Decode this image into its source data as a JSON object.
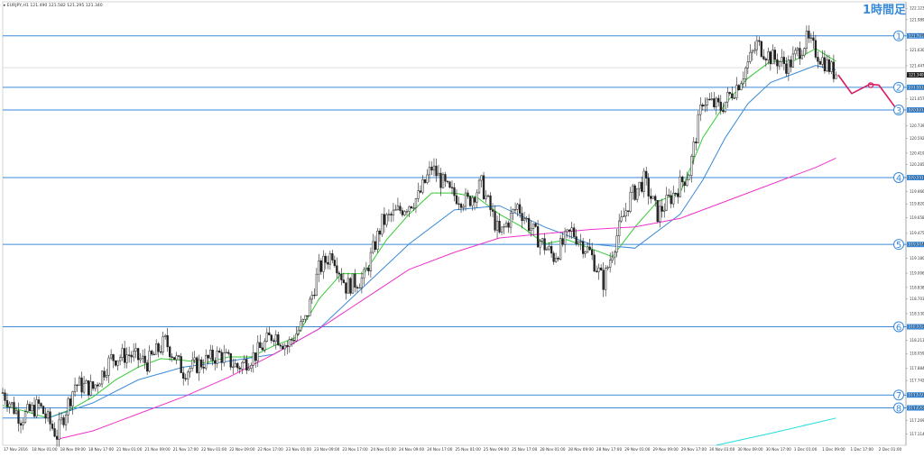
{
  "header": {
    "symbol_info": "▸ EURJPY,H1  121.490 121.582 121.295 121.340",
    "timeframe_label": "1時間足"
  },
  "colors": {
    "background": "#ffffff",
    "candle": "#222222",
    "ma_short": "#33cc33",
    "ma_mid": "#3a8ad8",
    "ma_long": "#ee33cc",
    "ma_extra": "#22dddd",
    "hline": "#3a8ad8",
    "forecast": "#d81b60",
    "marker": "#3a8ad8"
  },
  "chart_data": {
    "type": "candlestick",
    "symbol": "EURJPY",
    "timeframe": "H1",
    "ohlc_header": {
      "open": 121.49,
      "high": 121.582,
      "low": 121.295,
      "close": 121.34
    },
    "current_price": 121.34,
    "ylim": [
      116.98,
      122.2
    ],
    "y_ticks": [
      122.123,
      121.989,
      121.799,
      121.63,
      121.447,
      121.324,
      121.193,
      121.057,
      120.927,
      120.739,
      120.592,
      120.419,
      120.285,
      120.131,
      119.966,
      119.82,
      119.658,
      119.475,
      119.344,
      119.18,
      119.006,
      118.838,
      118.703,
      118.53,
      118.375,
      118.213,
      118.059,
      117.884,
      117.742,
      117.572,
      117.42,
      117.269,
      117.114
    ],
    "x_ticks": [
      "17 Nov 2016",
      "18 Nov 01:00",
      "18 Nov 09:00",
      "18 Nov 17:00",
      "21 Nov 01:00",
      "21 Nov 09:00",
      "21 Nov 17:00",
      "22 Nov 01:00",
      "22 Nov 09:00",
      "22 Nov 17:00",
      "23 Nov 01:00",
      "23 Nov 09:00",
      "23 Nov 17:00",
      "24 Nov 01:00",
      "24 Nov 09:00",
      "24 Nov 17:00",
      "25 Nov 01:00",
      "25 Nov 09:00",
      "25 Nov 17:00",
      "28 Nov 01:00",
      "28 Nov 09:00",
      "28 Nov 17:00",
      "29 Nov 01:00",
      "29 Nov 09:00",
      "29 Nov 17:00",
      "30 Nov 01:00",
      "30 Nov 09:00",
      "30 Nov 17:00",
      "1 Dec 01:00",
      "1 Dec 09:00",
      "1 Dec 17:00",
      "2 Dec 01:00"
    ],
    "candle_path": [
      [
        0,
        117.6
      ],
      [
        8,
        117.3
      ],
      [
        16,
        117.45
      ],
      [
        24,
        117.1
      ],
      [
        32,
        117.7
      ],
      [
        40,
        117.65
      ],
      [
        48,
        118.0
      ],
      [
        56,
        118.05
      ],
      [
        64,
        117.95
      ],
      [
        72,
        118.2
      ],
      [
        80,
        117.85
      ],
      [
        88,
        117.95
      ],
      [
        96,
        118.05
      ],
      [
        104,
        117.9
      ],
      [
        112,
        118.05
      ],
      [
        120,
        118.3
      ],
      [
        126,
        118.15
      ],
      [
        134,
        118.45
      ],
      [
        140,
        119.05
      ],
      [
        146,
        119.25
      ],
      [
        152,
        118.85
      ],
      [
        160,
        118.95
      ],
      [
        168,
        119.6
      ],
      [
        176,
        119.75
      ],
      [
        184,
        119.9
      ],
      [
        190,
        120.25
      ],
      [
        198,
        119.95
      ],
      [
        206,
        119.85
      ],
      [
        212,
        120.05
      ],
      [
        220,
        119.45
      ],
      [
        228,
        119.8
      ],
      [
        236,
        119.45
      ],
      [
        244,
        119.2
      ],
      [
        252,
        119.5
      ],
      [
        260,
        119.25
      ],
      [
        266,
        118.9
      ],
      [
        272,
        119.45
      ],
      [
        278,
        119.9
      ],
      [
        284,
        120.1
      ],
      [
        290,
        119.7
      ],
      [
        296,
        119.9
      ],
      [
        304,
        120.2
      ],
      [
        310,
        121.05
      ],
      [
        318,
        120.95
      ],
      [
        326,
        121.25
      ],
      [
        334,
        121.7
      ],
      [
        340,
        121.55
      ],
      [
        348,
        121.45
      ],
      [
        356,
        121.75
      ],
      [
        362,
        121.55
      ],
      [
        369,
        121.34
      ]
    ],
    "series": [
      {
        "name": "MA short",
        "color": "#33cc33",
        "values": [
          [
            0,
            117.45
          ],
          [
            10,
            117.38
          ],
          [
            20,
            117.3
          ],
          [
            30,
            117.4
          ],
          [
            40,
            117.55
          ],
          [
            50,
            117.75
          ],
          [
            60,
            117.9
          ],
          [
            70,
            118.0
          ],
          [
            80,
            117.98
          ],
          [
            90,
            117.95
          ],
          [
            100,
            118.02
          ],
          [
            110,
            118.02
          ],
          [
            120,
            118.15
          ],
          [
            130,
            118.25
          ],
          [
            140,
            118.7
          ],
          [
            150,
            119.0
          ],
          [
            160,
            119.0
          ],
          [
            170,
            119.4
          ],
          [
            180,
            119.7
          ],
          [
            190,
            119.95
          ],
          [
            200,
            119.95
          ],
          [
            210,
            119.9
          ],
          [
            220,
            119.7
          ],
          [
            230,
            119.55
          ],
          [
            240,
            119.35
          ],
          [
            250,
            119.4
          ],
          [
            260,
            119.3
          ],
          [
            270,
            119.2
          ],
          [
            280,
            119.55
          ],
          [
            290,
            119.85
          ],
          [
            300,
            119.95
          ],
          [
            310,
            120.6
          ],
          [
            320,
            121.0
          ],
          [
            330,
            121.3
          ],
          [
            340,
            121.5
          ],
          [
            350,
            121.5
          ],
          [
            360,
            121.65
          ],
          [
            369,
            121.5
          ]
        ]
      },
      {
        "name": "MA mid",
        "color": "#3a8ad8",
        "values": [
          [
            0,
            117.3
          ],
          [
            20,
            117.3
          ],
          [
            40,
            117.48
          ],
          [
            60,
            117.75
          ],
          [
            80,
            117.9
          ],
          [
            100,
            117.97
          ],
          [
            120,
            118.05
          ],
          [
            140,
            118.35
          ],
          [
            160,
            118.85
          ],
          [
            180,
            119.35
          ],
          [
            200,
            119.75
          ],
          [
            220,
            119.8
          ],
          [
            240,
            119.55
          ],
          [
            260,
            119.35
          ],
          [
            280,
            119.3
          ],
          [
            300,
            119.7
          ],
          [
            310,
            120.1
          ],
          [
            320,
            120.6
          ],
          [
            330,
            121.0
          ],
          [
            340,
            121.25
          ],
          [
            350,
            121.35
          ],
          [
            360,
            121.45
          ],
          [
            369,
            121.4
          ]
        ]
      },
      {
        "name": "MA long",
        "color": "#ee33cc",
        "values": [
          [
            24,
            117.05
          ],
          [
            40,
            117.15
          ],
          [
            60,
            117.35
          ],
          [
            80,
            117.55
          ],
          [
            100,
            117.78
          ],
          [
            120,
            118.05
          ],
          [
            140,
            118.35
          ],
          [
            160,
            118.7
          ],
          [
            180,
            119.05
          ],
          [
            200,
            119.25
          ],
          [
            220,
            119.42
          ],
          [
            240,
            119.47
          ],
          [
            260,
            119.52
          ],
          [
            280,
            119.55
          ],
          [
            300,
            119.65
          ],
          [
            320,
            119.85
          ],
          [
            340,
            120.05
          ],
          [
            360,
            120.25
          ],
          [
            369,
            120.36
          ]
        ]
      },
      {
        "name": "MA extra",
        "color": "#22dddd",
        "values": [
          [
            316,
            116.98
          ],
          [
            340,
            117.12
          ],
          [
            369,
            117.3
          ]
        ]
      }
    ],
    "horizontal_levels": [
      {
        "number": "1",
        "price": 121.799
      },
      {
        "number": "2",
        "price": 121.193
      },
      {
        "number": "3",
        "price": 120.927
      },
      {
        "number": "4",
        "price": 120.131
      },
      {
        "number": "5",
        "price": 119.344
      },
      {
        "number": "6",
        "price": 118.375
      },
      {
        "number": "7",
        "price": 117.572
      },
      {
        "number": "8",
        "price": 117.42
      }
    ],
    "forecast_path": [
      [
        370,
        121.34
      ],
      [
        376,
        121.12
      ],
      [
        384,
        121.23
      ],
      [
        388,
        121.22
      ],
      [
        396,
        120.93
      ]
    ]
  }
}
